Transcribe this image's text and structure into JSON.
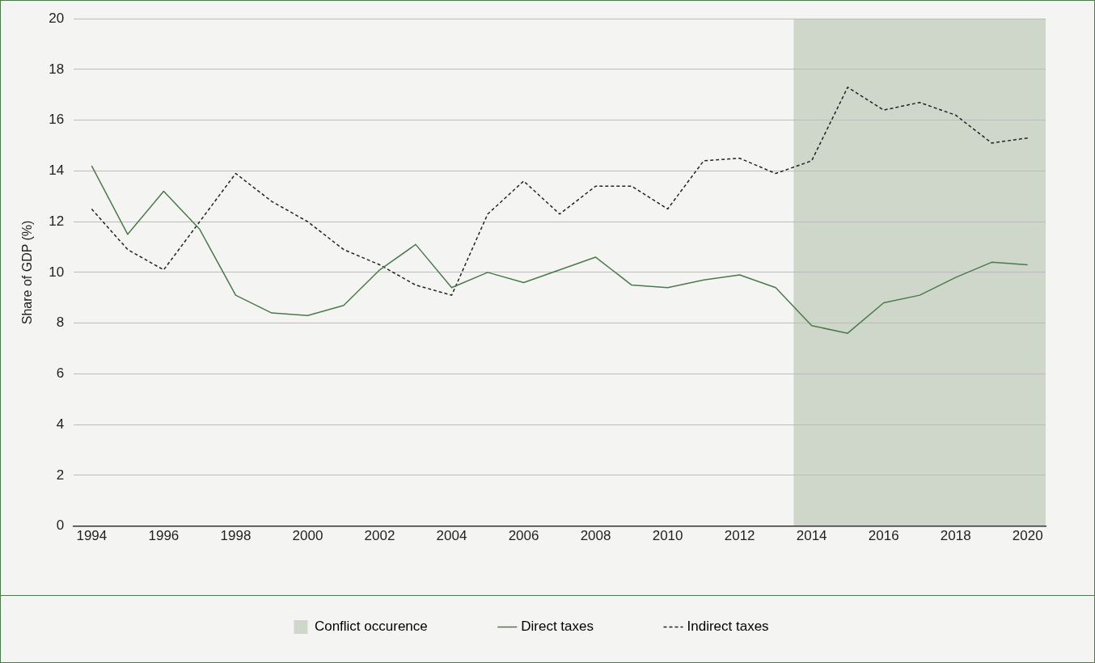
{
  "chart_data": {
    "type": "line",
    "ylabel": "Share of GDP (%)",
    "x": [
      1994,
      1995,
      1996,
      1997,
      1998,
      1999,
      2000,
      2001,
      2002,
      2003,
      2004,
      2005,
      2006,
      2007,
      2008,
      2009,
      2010,
      2011,
      2012,
      2013,
      2014,
      2015,
      2016,
      2017,
      2018,
      2019,
      2020
    ],
    "series": [
      {
        "name": "Direct taxes",
        "color": "#4a7a4a",
        "line_style": "solid",
        "values": [
          14.2,
          11.5,
          13.2,
          11.7,
          9.1,
          8.4,
          8.3,
          8.7,
          10.1,
          11.1,
          9.4,
          10.0,
          9.6,
          10.1,
          10.6,
          9.5,
          9.4,
          9.7,
          9.9,
          9.4,
          7.9,
          7.6,
          8.8,
          9.1,
          9.8,
          10.4,
          10.3
        ]
      },
      {
        "name": "Indirect taxes",
        "color": "#222222",
        "line_style": "dashed",
        "values": [
          12.5,
          10.9,
          10.1,
          12.0,
          13.9,
          12.8,
          12.0,
          10.9,
          10.3,
          9.5,
          9.1,
          12.3,
          13.6,
          12.3,
          13.4,
          13.4,
          12.5,
          14.4,
          14.5,
          13.9,
          14.4,
          17.3,
          16.4,
          16.7,
          16.2,
          15.1,
          15.3
        ]
      }
    ],
    "bands": [
      {
        "axis": "x",
        "from": 2013.5,
        "to": 2020.5,
        "label": "Conflict occurence",
        "color": "#cfd7cb"
      }
    ],
    "xlim": [
      1993.5,
      2020.5
    ],
    "xticks": [
      1994,
      1996,
      1998,
      2000,
      2002,
      2004,
      2006,
      2008,
      2010,
      2012,
      2014,
      2016,
      2018,
      2020
    ],
    "ylim": [
      0,
      20
    ],
    "yticks": [
      0,
      2,
      4,
      6,
      8,
      10,
      12,
      14,
      16,
      18,
      20
    ],
    "grid": "y",
    "legend": "bottom",
    "marker": "none"
  }
}
